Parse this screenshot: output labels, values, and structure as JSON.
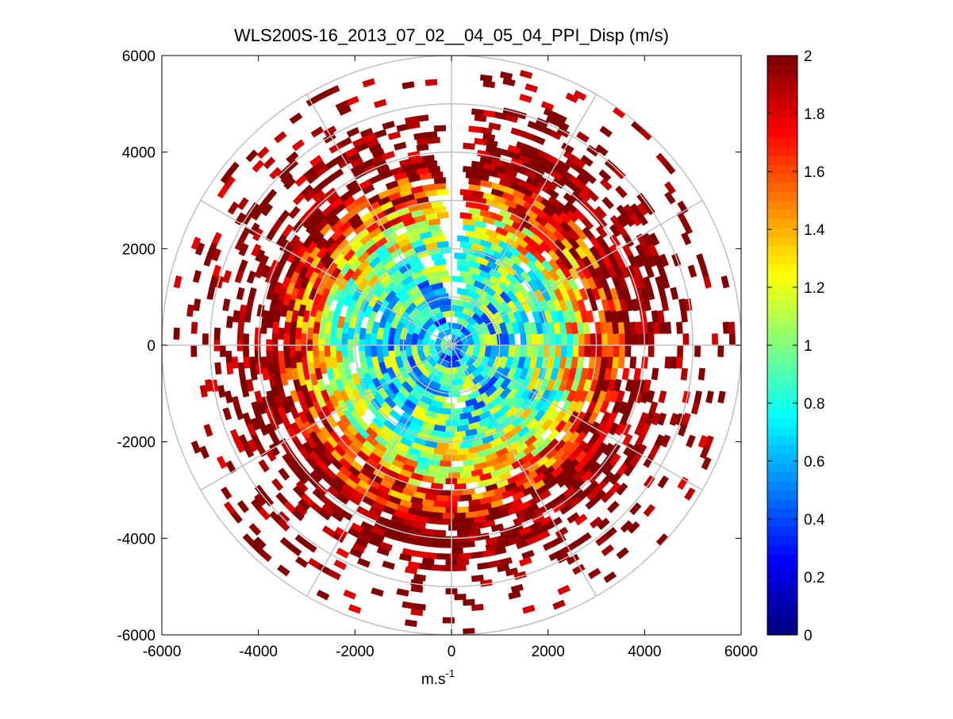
{
  "chart_data": {
    "type": "heatmap",
    "subtype": "polar-ppi",
    "title": "WLS200S-16_2013_07_02__04_05_04_PPI_Disp (m/s)",
    "xlabel": "m.s",
    "xlabel_superscript": "-1",
    "ylabel": "",
    "xlim": [
      -6000,
      6000
    ],
    "ylim": [
      -6000,
      6000
    ],
    "xticks": [
      -6000,
      -4000,
      -2000,
      0,
      2000,
      4000,
      6000
    ],
    "yticks": [
      -6000,
      -4000,
      -2000,
      0,
      2000,
      4000,
      6000
    ],
    "xtick_labels": [
      "-6000",
      "-4000",
      "-2000",
      "0",
      "2000",
      "4000",
      "6000"
    ],
    "ytick_labels": [
      "-6000",
      "-4000",
      "-2000",
      "0",
      "2000",
      "4000",
      "6000"
    ],
    "polar_grid": {
      "ring_radii": [
        1000,
        2000,
        3000,
        4000,
        5000,
        6000
      ],
      "spoke_angles_deg": [
        0,
        30,
        60,
        90,
        120,
        150,
        180,
        210,
        240,
        270,
        300,
        330
      ]
    },
    "colorbar": {
      "colormap": "jet",
      "range": [
        0,
        2
      ],
      "ticks": [
        0,
        0.2,
        0.4,
        0.6,
        0.8,
        1,
        1.2,
        1.4,
        1.6,
        1.8,
        2
      ],
      "tick_labels": [
        "0",
        "0.2",
        "0.4",
        "0.6",
        "0.8",
        "1",
        "1.2",
        "1.4",
        "1.6",
        "1.8",
        "2"
      ]
    },
    "field": {
      "max_range": 6000,
      "gap_sector_deg": [
        85,
        93
      ],
      "radial_profile": [
        {
          "range": 0,
          "dispersion": 0.7
        },
        {
          "range": 1500,
          "dispersion": 0.8
        },
        {
          "range": 2300,
          "dispersion": 1.05
        },
        {
          "range": 3000,
          "dispersion": 1.6
        },
        {
          "range": 3800,
          "dispersion": 2.0
        },
        {
          "range": 6000,
          "dispersion": 2.0
        }
      ],
      "coverage_profile": [
        {
          "range": 0,
          "fraction": 0.98
        },
        {
          "range": 3300,
          "fraction": 0.95
        },
        {
          "range": 4000,
          "fraction": 0.7
        },
        {
          "range": 4800,
          "fraction": 0.3
        },
        {
          "range": 6000,
          "fraction": 0.06
        }
      ]
    }
  }
}
